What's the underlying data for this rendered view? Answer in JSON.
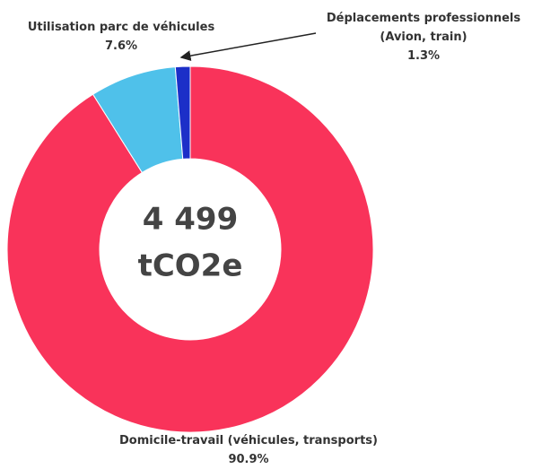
{
  "chart_data": {
    "type": "donut",
    "center_label": [
      "4 499",
      "tCO2e"
    ],
    "categories": [
      "Domicile-travail (véhicules, transports)",
      "Utilisation parc de véhicules",
      "Déplacements professionnels (Avion, train)"
    ],
    "values": [
      90.9,
      7.6,
      1.3
    ],
    "value_labels": [
      "90.9%",
      "7.6%",
      "1.3%"
    ],
    "colors": [
      "#f9335a",
      "#4fc1ea",
      "#1c2fc8"
    ]
  }
}
